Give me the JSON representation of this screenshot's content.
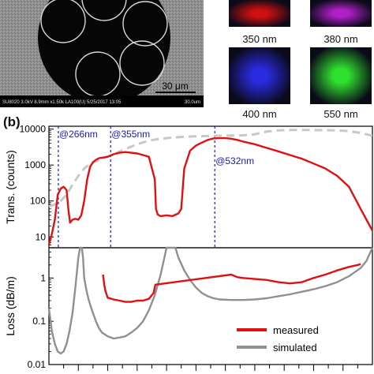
{
  "sem": {
    "scale_label": "30 μm",
    "info_bar": "SU8020 3.0kV 8.9mm x1.50k LA100(U) 5/25/2017 13:05",
    "info_bar_right": "30.0um"
  },
  "swatches": [
    {
      "label": "350 nm",
      "color": "#d01010"
    },
    {
      "label": "380 nm",
      "color": "#b020c8"
    },
    {
      "label": "400 nm",
      "color": "#2a2ae0"
    },
    {
      "label": "550 nm",
      "color": "#30e030"
    }
  ],
  "panel_label": "(b)",
  "chart_data": [
    {
      "type": "line",
      "ylabel": "Trans. (counts)",
      "yscale": "log",
      "ylim": [
        5,
        12000
      ],
      "yticks": [
        "10",
        "100",
        "1000",
        "10000"
      ],
      "xlim": [
        250,
        800
      ],
      "annotations": [
        {
          "x": 266,
          "label": "@266nm"
        },
        {
          "x": 355,
          "label": "@355nm"
        },
        {
          "x": 532,
          "label": "@532nm"
        }
      ],
      "series": [
        {
          "color": "#e01010",
          "x": [
            250,
            255,
            260,
            265,
            270,
            275,
            280,
            283,
            286,
            290,
            295,
            300,
            305,
            310,
            315,
            320,
            325,
            330,
            335,
            340,
            350,
            360,
            370,
            380,
            390,
            400,
            410,
            420,
            430,
            432,
            435,
            440,
            450,
            460,
            470,
            475,
            480,
            490,
            500,
            510,
            520,
            530,
            540,
            550,
            560,
            570,
            580,
            600,
            620,
            640,
            660,
            680,
            700,
            720,
            740,
            760,
            780,
            790,
            800
          ],
          "y": [
            6,
            12,
            30,
            150,
            220,
            250,
            200,
            60,
            25,
            30,
            32,
            30,
            40,
            100,
            400,
            900,
            1200,
            1400,
            1550,
            1600,
            1700,
            2000,
            2200,
            2300,
            2200,
            2100,
            1900,
            1700,
            400,
            60,
            42,
            38,
            40,
            38,
            45,
            60,
            800,
            2500,
            3500,
            4200,
            5000,
            5500,
            5600,
            5600,
            5400,
            5000,
            4500,
            3800,
            3000,
            2400,
            1900,
            1500,
            1100,
            800,
            500,
            250,
            60,
            30,
            15
          ]
        },
        {
          "color": "#c8c8c8",
          "dashed": true,
          "x": [
            250,
            260,
            270,
            280,
            290,
            300,
            310,
            320,
            340,
            360,
            380,
            400,
            420,
            440,
            460,
            480,
            500,
            520,
            540,
            560,
            580,
            600,
            620,
            640,
            660,
            680,
            700,
            720,
            740,
            760,
            780,
            800
          ],
          "y": [
            70,
            80,
            100,
            150,
            280,
            500,
            800,
            1100,
            1500,
            2000,
            2800,
            3800,
            4800,
            5400,
            5800,
            6100,
            6300,
            6400,
            6500,
            6600,
            6700,
            7200,
            8500,
            9200,
            9400,
            9400,
            9400,
            9300,
            9200,
            8800,
            7800,
            6500
          ]
        }
      ]
    },
    {
      "type": "line",
      "ylabel": "Loss (dB/m)",
      "yscale": "log",
      "ylim": [
        0.01,
        5
      ],
      "yticks": [
        "0.01",
        "0.1",
        "1"
      ],
      "xlim": [
        250,
        800
      ],
      "series": [
        {
          "name": "measured",
          "color": "#e01010",
          "x": [
            342,
            344,
            346,
            350,
            360,
            370,
            380,
            390,
            400,
            410,
            420,
            428,
            431,
            560,
            570,
            580,
            600,
            620,
            640,
            660,
            680,
            700,
            720,
            740,
            760,
            775,
            780
          ],
          "y": [
            1.2,
            0.7,
            0.5,
            0.35,
            0.32,
            0.3,
            0.28,
            0.28,
            0.3,
            0.3,
            0.33,
            0.45,
            0.7,
            1.2,
            1.05,
            1.0,
            0.95,
            0.9,
            0.8,
            0.75,
            0.8,
            1.0,
            1.2,
            1.5,
            1.8,
            2.0,
            2.1
          ]
        },
        {
          "name": "simulated",
          "color": "#909090",
          "x": [
            250,
            255,
            260,
            265,
            270,
            275,
            280,
            285,
            290,
            295,
            300,
            303,
            306,
            308,
            310,
            314,
            318,
            322,
            326,
            330,
            335,
            340,
            350,
            360,
            370,
            380,
            390,
            400,
            410,
            420,
            430,
            440,
            450,
            460,
            465,
            470,
            480,
            490,
            500,
            510,
            520,
            530,
            540,
            560,
            580,
            600,
            620,
            640,
            660,
            680,
            700,
            720,
            740,
            760,
            780,
            790,
            800
          ],
          "y": [
            0.2,
            0.06,
            0.03,
            0.02,
            0.018,
            0.02,
            0.03,
            0.06,
            0.15,
            0.6,
            3,
            8,
            8,
            3,
            1,
            0.5,
            0.3,
            0.2,
            0.14,
            0.1,
            0.07,
            0.055,
            0.045,
            0.04,
            0.042,
            0.045,
            0.055,
            0.07,
            0.1,
            0.18,
            0.4,
            1.2,
            5,
            8,
            5,
            3,
            1.5,
            0.9,
            0.6,
            0.45,
            0.38,
            0.34,
            0.32,
            0.31,
            0.31,
            0.32,
            0.34,
            0.38,
            0.42,
            0.48,
            0.55,
            0.65,
            0.8,
            1.1,
            1.7,
            2.5,
            5
          ]
        }
      ]
    }
  ]
}
